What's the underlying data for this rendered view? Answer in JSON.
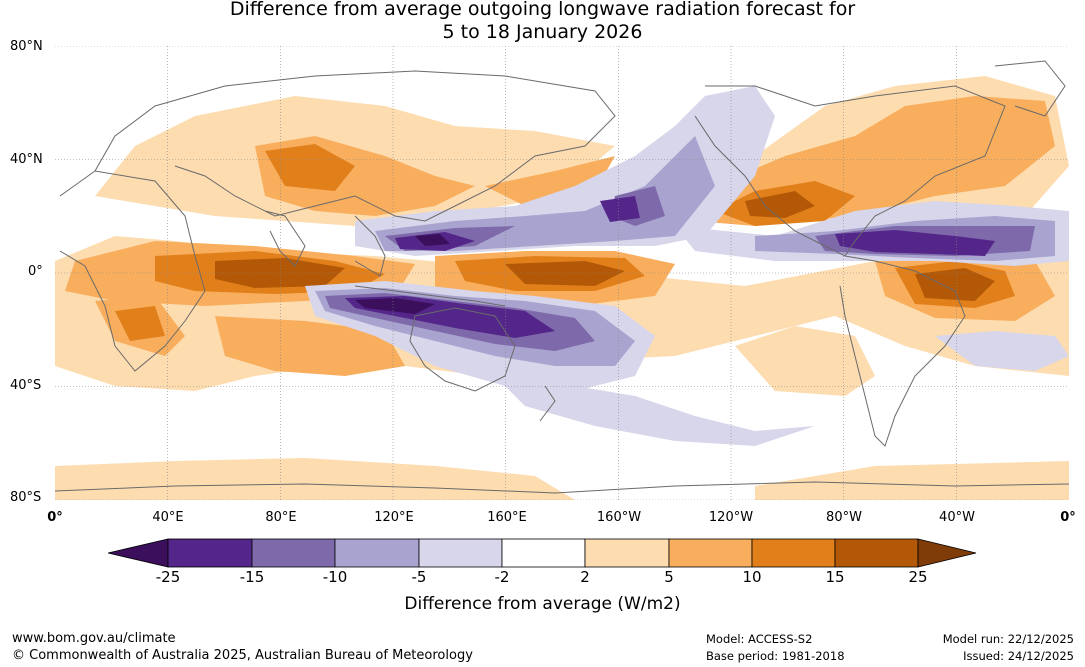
{
  "title": {
    "line1": "Difference from average outgoing longwave radiation forecast for",
    "line2": "5 to 18 January 2026"
  },
  "map": {
    "lat_labels": [
      "80°N",
      "40°N",
      "0°",
      "40°S",
      "80°S"
    ],
    "lon_labels": [
      "0°",
      "40°E",
      "80°E",
      "120°E",
      "160°E",
      "160°W",
      "120°W",
      "80°W",
      "40°W",
      "0°"
    ]
  },
  "colorbar": {
    "title": "Difference from average (W/m2)",
    "ticks": [
      "-25",
      "-15",
      "-10",
      "-5",
      "-2",
      "2",
      "5",
      "10",
      "15",
      "25"
    ],
    "colors": [
      "#3b0f5c",
      "#54268a",
      "#7e6aaa",
      "#a9a3cf",
      "#d7d6ea",
      "#ffffff",
      "#fddcb0",
      "#f8ae5d",
      "#e1801a",
      "#b35806",
      "#7f3b08"
    ]
  },
  "footer": {
    "url": "www.bom.gov.au/climate",
    "copyright": "© Commonwealth of Australia 2025, Australian Bureau of Meteorology",
    "model": "Model: ACCESS-S2",
    "base_period": "Base period: 1981-2018",
    "model_run": "Model run: 22/12/2025",
    "issued": "Issued: 24/12/2025"
  }
}
